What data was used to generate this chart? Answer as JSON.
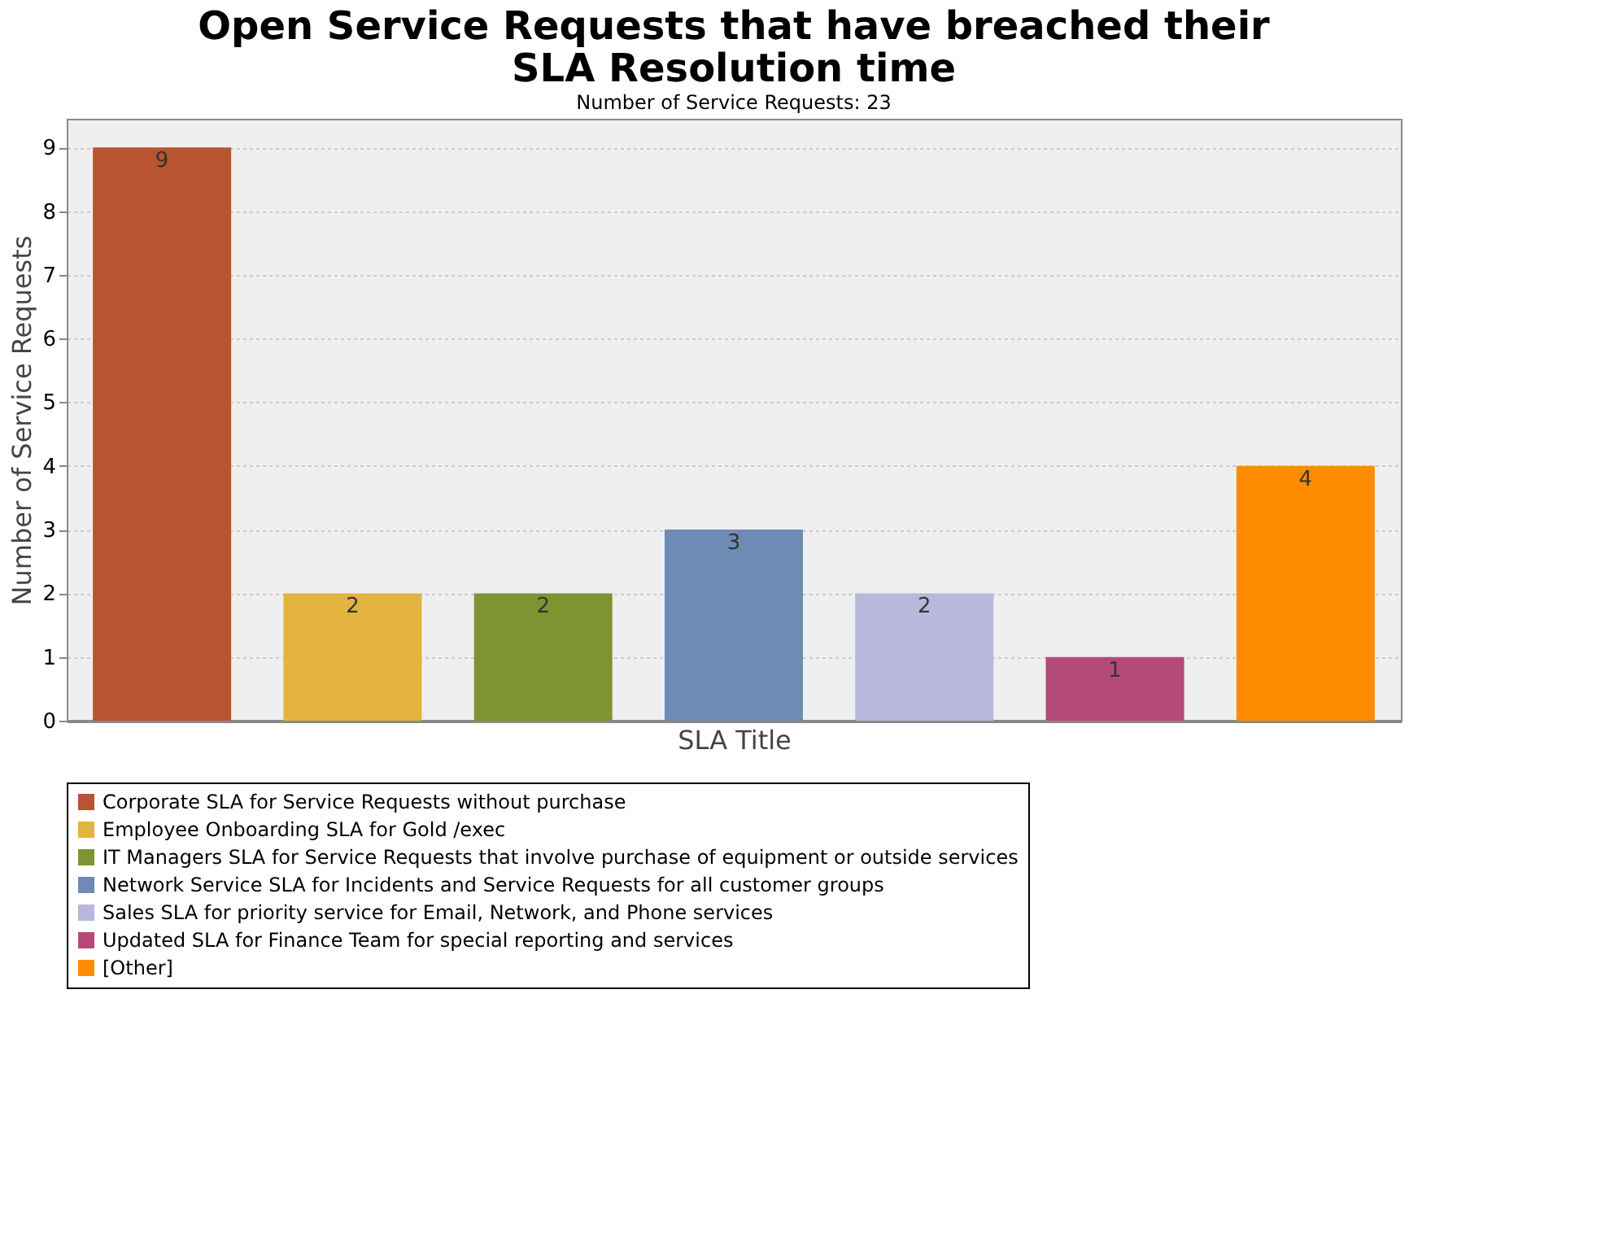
{
  "chart_data": {
    "type": "bar",
    "title": "Open Service Requests that have breached their SLA Resolution time",
    "subtitle": "Number of Service Requests: 23",
    "xlabel": "SLA Title",
    "ylabel": "Number of Service Requests",
    "categories": [
      null,
      null,
      null,
      null,
      null,
      null,
      null
    ],
    "series": [
      {
        "name": "Corporate SLA for Service Requests without purchase",
        "color": "#b85432",
        "values": [
          9,
          null,
          null,
          null,
          null,
          null,
          null
        ]
      },
      {
        "name": "Employee Onboarding SLA for Gold /exec",
        "color": "#e2b33e",
        "values": [
          null,
          2,
          null,
          null,
          null,
          null,
          null
        ]
      },
      {
        "name": "IT Managers SLA for Service Requests that involve purchase of equipment or outside services",
        "color": "#7e9433",
        "values": [
          null,
          null,
          2,
          null,
          null,
          null,
          null
        ]
      },
      {
        "name": "Network Service SLA for Incidents and Service Requests for all customer groups",
        "color": "#6e8bb6",
        "values": [
          null,
          null,
          null,
          3,
          null,
          null,
          null
        ]
      },
      {
        "name": "Sales SLA for priority service for Email, Network, and Phone services",
        "color": "#b8b7dc",
        "values": [
          null,
          null,
          null,
          null,
          2,
          null,
          null
        ]
      },
      {
        "name": "Updated SLA for Finance Team for special reporting and services",
        "color": "#b44a78",
        "values": [
          null,
          null,
          null,
          null,
          null,
          1,
          null
        ]
      },
      {
        "name": "[Other]",
        "color": "#ff8c00",
        "values": [
          null,
          null,
          null,
          null,
          null,
          null,
          4
        ]
      }
    ],
    "ylim": [
      0,
      9.45
    ],
    "yticks": [
      0,
      1,
      2,
      3,
      4,
      5,
      6,
      7,
      8,
      9
    ],
    "grid": "y",
    "legend": "bottom",
    "tick_labels": "y",
    "data_labels": true
  }
}
